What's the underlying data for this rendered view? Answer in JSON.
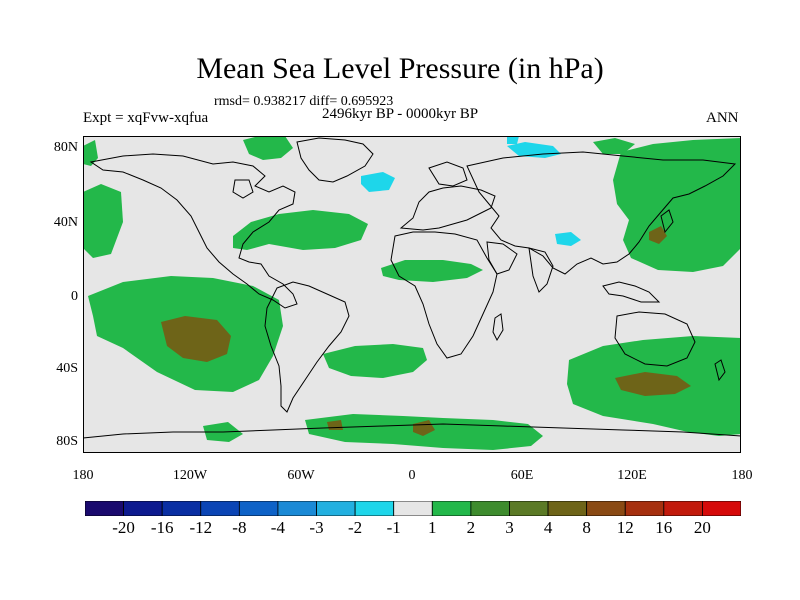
{
  "title": "Mean Sea Level Pressure (in hPa)",
  "stats": "rmsd= 0.938217  diff= 0.695923",
  "experiment": "Expt = xqFvw-xqfua",
  "period": "2496kyr BP - 0000kyr BP",
  "season": "ANN",
  "lat_labels": [
    "80N",
    "40N",
    "0",
    "40S",
    "80S"
  ],
  "lon_labels": [
    "180",
    "120W",
    "60W",
    "0",
    "60E",
    "120E",
    "180"
  ],
  "colorbar": {
    "labels": [
      "-20",
      "-16",
      "-12",
      "-8",
      "-4",
      "-3",
      "-2",
      "-1",
      "1",
      "2",
      "3",
      "4",
      "8",
      "12",
      "16",
      "20"
    ],
    "colors": [
      "#1a0a6e",
      "#0d1a8f",
      "#0a2fa3",
      "#0b45b5",
      "#0e62c7",
      "#1b8ad6",
      "#22b0e0",
      "#1ed6ea",
      "#e6e6e6",
      "#23b84a",
      "#3e8c2e",
      "#5b7a26",
      "#6e6418",
      "#8a4a14",
      "#a6300f",
      "#c21a0c",
      "#d60a0a"
    ]
  },
  "map": {
    "background_color": "#e6e6e6",
    "coastline_color": "#000000"
  }
}
